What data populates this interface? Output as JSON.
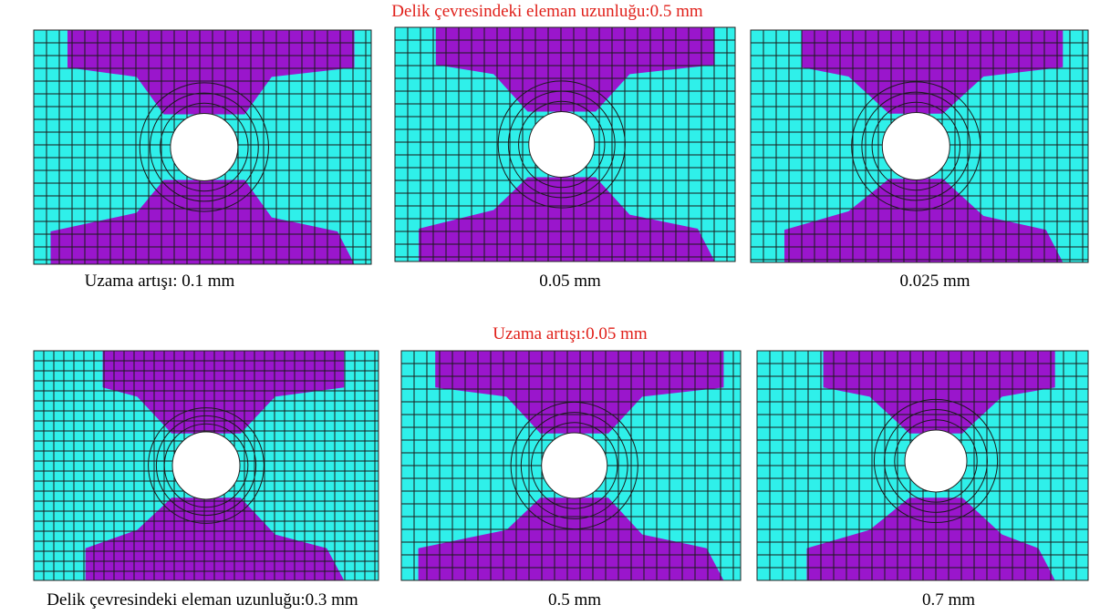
{
  "row1": {
    "title": "Delik çevresindeki eleman uzunluğu:0.5 mm",
    "captions": [
      "Uzama artışı: 0.1 mm",
      "0.05 mm",
      "0.025 mm"
    ]
  },
  "row2": {
    "title": "Uzama artışı:0.05 mm",
    "captions": [
      "Delik çevresindeki eleman uzunluğu:0.3 mm",
      "0.5 mm",
      "0.7 mm"
    ]
  }
}
